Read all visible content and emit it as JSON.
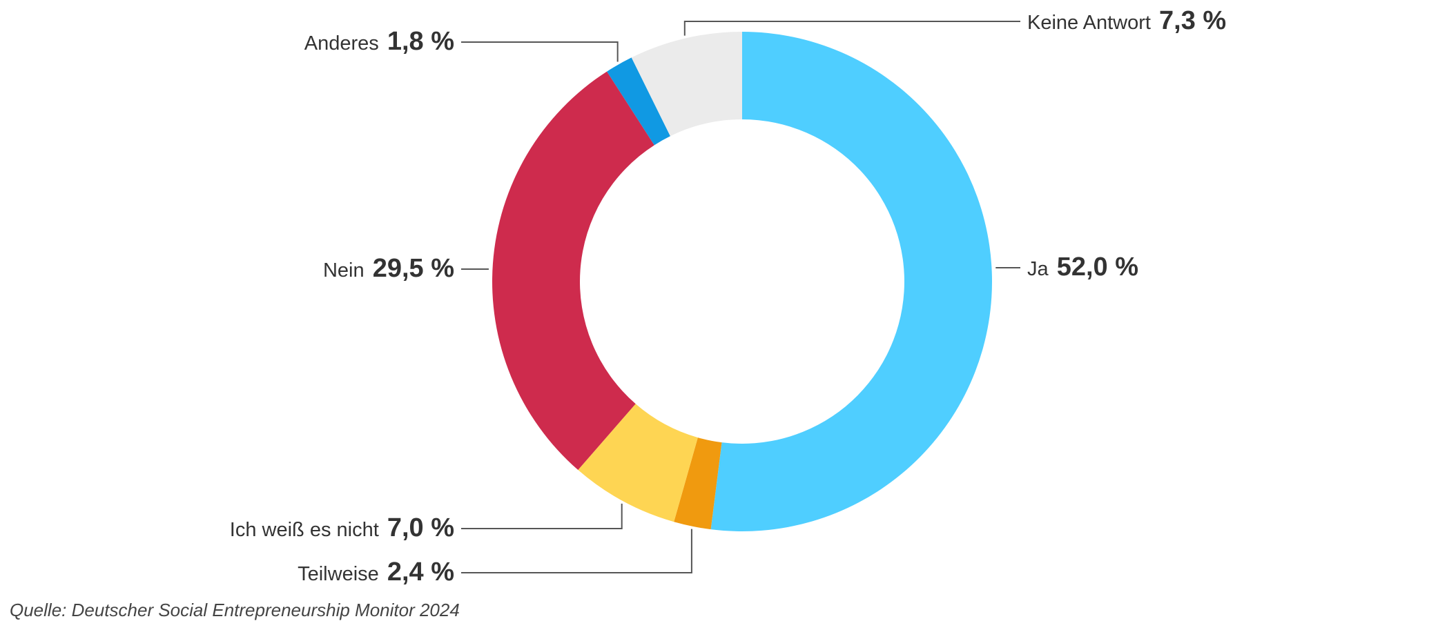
{
  "chart_data": {
    "type": "pie",
    "donut": true,
    "slices": [
      {
        "label": "Ja",
        "value": 52.0,
        "value_label": "52,0 %",
        "color": "#4FCEFF"
      },
      {
        "label": "Teilweise",
        "value": 2.4,
        "value_label": "2,4 %",
        "color": "#F09A0F"
      },
      {
        "label": "Ich weiß es nicht",
        "value": 7.0,
        "value_label": "7,0 %",
        "color": "#FED553"
      },
      {
        "label": "Nein",
        "value": 29.5,
        "value_label": "29,5 %",
        "color": "#CE2B4D"
      },
      {
        "label": "Anderes",
        "value": 1.8,
        "value_label": "1,8 %",
        "color": "#1099E3"
      },
      {
        "label": "Keine Antwort",
        "value": 7.3,
        "value_label": "7,3 %",
        "color": "#EBEBEB"
      }
    ],
    "legend": "none",
    "data_labels": "outside with leader lines"
  },
  "source": "Quelle: Deutscher Social Entrepreneurship Monitor 2024"
}
